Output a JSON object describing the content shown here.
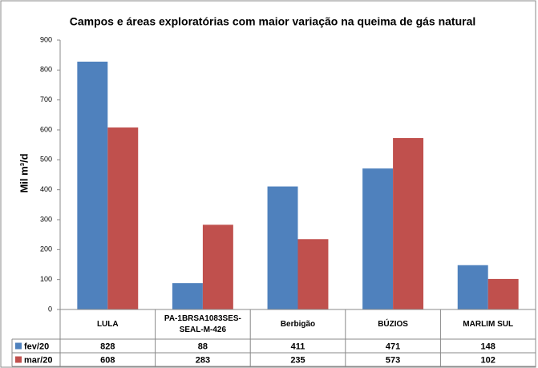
{
  "chart_data": {
    "type": "bar",
    "title": "Campos e áreas exploratórias com maior variação na queima de gás natural",
    "y_label": "Mil m³/d",
    "categories": [
      "LULA",
      "PA-1BRSA1083SES-SEAL-M-426",
      "Berbigão",
      "BÚZIOS",
      "MARLIM SUL"
    ],
    "series": [
      {
        "name": "fev/20",
        "color": "#4f81bd",
        "values": [
          828,
          88,
          411,
          471,
          148
        ]
      },
      {
        "name": "mar/20",
        "color": "#c0504d",
        "values": [
          608,
          283,
          235,
          573,
          102
        ]
      }
    ],
    "ylim": [
      0,
      900
    ],
    "yticks": [
      0,
      100,
      200,
      300,
      400,
      500,
      600,
      700,
      800,
      900
    ],
    "grid": false
  }
}
